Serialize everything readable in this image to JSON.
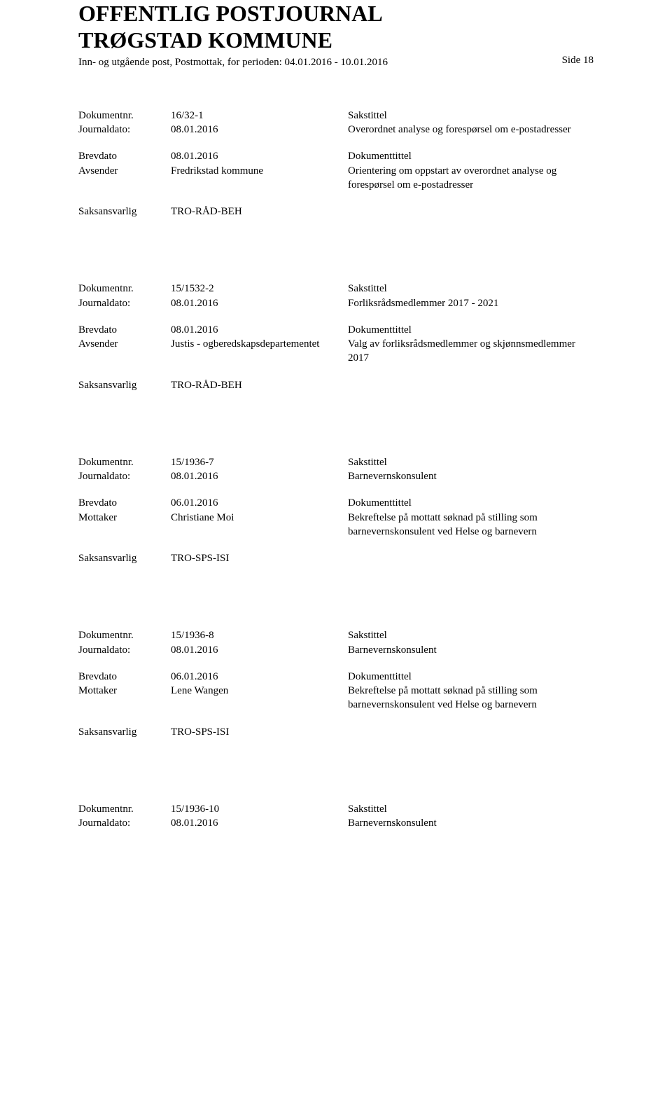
{
  "header": {
    "title_line1": "OFFENTLIG POSTJOURNAL",
    "title_line2": "TRØGSTAD KOMMUNE",
    "period_text": "Inn- og utgående post, Postmottak, for perioden: 04.01.2016 - 10.01.2016",
    "side_text": "Side 18"
  },
  "labels": {
    "dokumentnr": "Dokumentnr.",
    "journaldato": "Journaldato:",
    "brevdato": "Brevdato",
    "avsender": "Avsender",
    "mottaker": "Mottaker",
    "saksansvarlig": "Saksansvarlig",
    "sakstittel": "Sakstittel",
    "dokumenttittel": "Dokumenttittel"
  },
  "entries": [
    {
      "dokumentnr": "16/32-1",
      "journaldato": "08.01.2016",
      "sakstittel_text": "Overordnet analyse og forespørsel om e-postadresser",
      "brevdato": "08.01.2016",
      "party_label": "Avsender",
      "party_value": "Fredrikstad kommune",
      "dokumenttittel_text": "Orientering om oppstart av overordnet analyse og forespørsel om e-postadresser",
      "saksansvarlig": "TRO-RÅD-BEH"
    },
    {
      "dokumentnr": "15/1532-2",
      "journaldato": "08.01.2016",
      "sakstittel_text": "Forliksrådsmedlemmer 2017 - 2021",
      "brevdato": "08.01.2016",
      "party_label": "Avsender",
      "party_value": "Justis - ogberedskapsdepartementet",
      "dokumenttittel_text": "Valg av forliksrådsmedlemmer og skjønnsmedlemmer 2017",
      "saksansvarlig": "TRO-RÅD-BEH"
    },
    {
      "dokumentnr": "15/1936-7",
      "journaldato": "08.01.2016",
      "sakstittel_text": "Barnevernskonsulent",
      "brevdato": "06.01.2016",
      "party_label": "Mottaker",
      "party_value": "Christiane Moi",
      "dokumenttittel_text": "Bekreftelse på mottatt søknad på stilling som barnevernskonsulent ved Helse og barnevern",
      "saksansvarlig": "TRO-SPS-ISI"
    },
    {
      "dokumentnr": "15/1936-8",
      "journaldato": "08.01.2016",
      "sakstittel_text": "Barnevernskonsulent",
      "brevdato": "06.01.2016",
      "party_label": "Mottaker",
      "party_value": "Lene Wangen",
      "dokumenttittel_text": "Bekreftelse på mottatt søknad på stilling som barnevernskonsulent ved Helse og barnevern",
      "saksansvarlig": "TRO-SPS-ISI"
    },
    {
      "dokumentnr": "15/1936-10",
      "journaldato": "08.01.2016",
      "sakstittel_text": "Barnevernskonsulent"
    }
  ]
}
